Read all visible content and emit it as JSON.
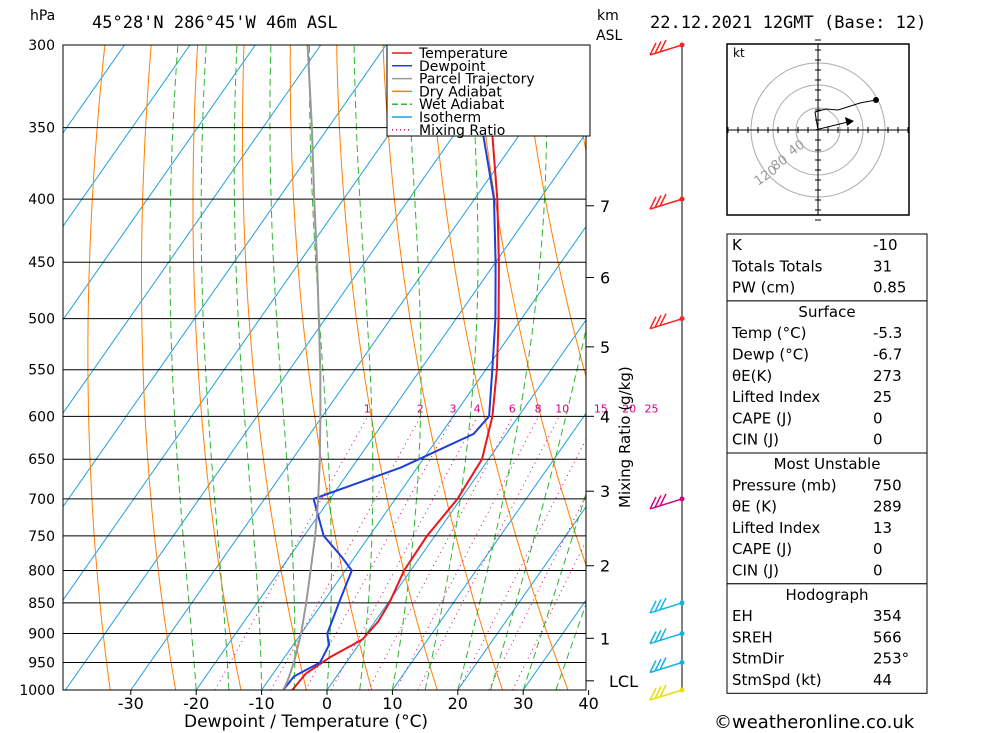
{
  "header": {
    "location": "45°28'N  286°45'W  46m  ASL",
    "datetime": "22.12.2021  12GMT  (Base: 12)",
    "hpa_label": "hPa",
    "km_label": "km",
    "asl_label": "ASL",
    "kt_label": "kt"
  },
  "chart_data": {
    "type": "line",
    "title": "",
    "xlabel": "Dewpoint / Temperature (°C)",
    "ylabel": "hPa",
    "right_axis_label": "Mixing Ratio (g/kg)",
    "xlim": [
      -40,
      40
    ],
    "ylim": [
      1000,
      300
    ],
    "x_ticks": [
      -30,
      -20,
      -10,
      0,
      10,
      20,
      30,
      40
    ],
    "pressure_levels": [
      300,
      350,
      400,
      450,
      500,
      550,
      600,
      650,
      700,
      750,
      800,
      850,
      900,
      950,
      1000
    ],
    "km_ticks": [
      {
        "label": "1",
        "p": 908
      },
      {
        "label": "2",
        "p": 793
      },
      {
        "label": "3",
        "p": 690
      },
      {
        "label": "4",
        "p": 600
      },
      {
        "label": "5",
        "p": 527
      },
      {
        "label": "6",
        "p": 463
      },
      {
        "label": "7",
        "p": 405
      }
    ],
    "lcl": {
      "label": "LCL",
      "p": 983
    },
    "mixing_ratio_labels": [
      "1",
      "2",
      "3",
      "4",
      "6",
      "8",
      "10",
      "15",
      "20",
      "25"
    ],
    "mixing_ratio_values": [
      1,
      2,
      3,
      4,
      6,
      8,
      10,
      15,
      20,
      25
    ],
    "legend": [
      {
        "name": "Temperature",
        "color": "#e8161d",
        "style": "solid"
      },
      {
        "name": "Dewpoint",
        "color": "#1f3fd8",
        "style": "solid"
      },
      {
        "name": "Parcel Trajectory",
        "color": "#999999",
        "style": "solid"
      },
      {
        "name": "Dry Adiabat",
        "color": "#ff7f00",
        "style": "solid"
      },
      {
        "name": "Wet Adiabat",
        "color": "#2fb52f",
        "style": "dashed"
      },
      {
        "name": "Isotherm",
        "color": "#1fa0e0",
        "style": "solid"
      },
      {
        "name": "Mixing Ratio",
        "color": "#d4007f",
        "style": "dotted"
      }
    ],
    "legend_position": "top-right",
    "grid": true,
    "series": [
      {
        "name": "Temperature",
        "points": [
          [
            1000,
            -5.3
          ],
          [
            970,
            -5.0
          ],
          [
            940,
            -3.0
          ],
          [
            910,
            0.0
          ],
          [
            880,
            0.5
          ],
          [
            850,
            0.2
          ],
          [
            800,
            -1.0
          ],
          [
            750,
            -1.2
          ],
          [
            700,
            -0.5
          ],
          [
            650,
            -1.0
          ],
          [
            600,
            -4.0
          ],
          [
            550,
            -8.3
          ],
          [
            500,
            -13.5
          ],
          [
            450,
            -19.5
          ],
          [
            400,
            -26.5
          ],
          [
            350,
            -35.0
          ],
          [
            300,
            -44.0
          ]
        ]
      },
      {
        "name": "Dewpoint",
        "points": [
          [
            1000,
            -6.7
          ],
          [
            975,
            -6.5
          ],
          [
            950,
            -4.0
          ],
          [
            920,
            -4.5
          ],
          [
            900,
            -6.0
          ],
          [
            850,
            -7.5
          ],
          [
            800,
            -9.0
          ],
          [
            780,
            -12.0
          ],
          [
            750,
            -17.0
          ],
          [
            700,
            -22.5
          ],
          [
            660,
            -12.5
          ],
          [
            620,
            -5.0
          ],
          [
            600,
            -4.5
          ],
          [
            550,
            -9.0
          ],
          [
            500,
            -14.0
          ],
          [
            450,
            -20.0
          ],
          [
            400,
            -27.0
          ],
          [
            350,
            -36.5
          ],
          [
            300,
            -45.5
          ]
        ]
      },
      {
        "name": "Parcel Trajectory",
        "points": [
          [
            1000,
            -6.7
          ],
          [
            983,
            -7.0
          ],
          [
            950,
            -8.0
          ],
          [
            900,
            -10.0
          ],
          [
            850,
            -12.5
          ],
          [
            800,
            -15.3
          ],
          [
            750,
            -18.3
          ],
          [
            700,
            -21.8
          ],
          [
            650,
            -25.8
          ],
          [
            600,
            -30.3
          ],
          [
            550,
            -35.3
          ],
          [
            500,
            -41.0
          ],
          [
            450,
            -47.3
          ],
          [
            400,
            -54.5
          ],
          [
            350,
            -62.5
          ],
          [
            300,
            -72.0
          ]
        ]
      }
    ],
    "wind_barbs": [
      {
        "p": 300,
        "color": "#ff2020"
      },
      {
        "p": 400,
        "color": "#ff2020"
      },
      {
        "p": 500,
        "color": "#ff2020"
      },
      {
        "p": 700,
        "color": "#d4007f"
      },
      {
        "p": 850,
        "color": "#10b4e0"
      },
      {
        "p": 900,
        "color": "#10b4e0"
      },
      {
        "p": 950,
        "color": "#10b4e0"
      },
      {
        "p": 1000,
        "color": "#e8e000"
      }
    ]
  },
  "hodograph": {
    "ring_labels": [
      "40",
      "80",
      "120"
    ]
  },
  "indices_table": {
    "rows": [
      {
        "label": "K",
        "value": "-10"
      },
      {
        "label": "Totals Totals",
        "value": "31"
      },
      {
        "label": "PW (cm)",
        "value": "0.85"
      }
    ]
  },
  "surface_table": {
    "title": "Surface",
    "rows": [
      {
        "label": "Temp (°C)",
        "value": "-5.3"
      },
      {
        "label": "Dewp (°C)",
        "value": "-6.7"
      },
      {
        "label": "θE(K)",
        "value": "273"
      },
      {
        "label": "Lifted Index",
        "value": "25"
      },
      {
        "label": "CAPE (J)",
        "value": "0"
      },
      {
        "label": "CIN (J)",
        "value": "0"
      }
    ]
  },
  "unstable_table": {
    "title": "Most Unstable",
    "rows": [
      {
        "label": "Pressure (mb)",
        "value": "750"
      },
      {
        "label": "θE (K)",
        "value": "289"
      },
      {
        "label": "Lifted Index",
        "value": "13"
      },
      {
        "label": "CAPE (J)",
        "value": "0"
      },
      {
        "label": "CIN (J)",
        "value": "0"
      }
    ]
  },
  "hodo_table": {
    "title": "Hodograph",
    "rows": [
      {
        "label": "EH",
        "value": "354"
      },
      {
        "label": "SREH",
        "value": "566"
      },
      {
        "label": "StmDir",
        "value": "253°"
      },
      {
        "label": "StmSpd (kt)",
        "value": "44"
      }
    ]
  },
  "footer": {
    "copyright": "©weatheronline.co.uk"
  }
}
